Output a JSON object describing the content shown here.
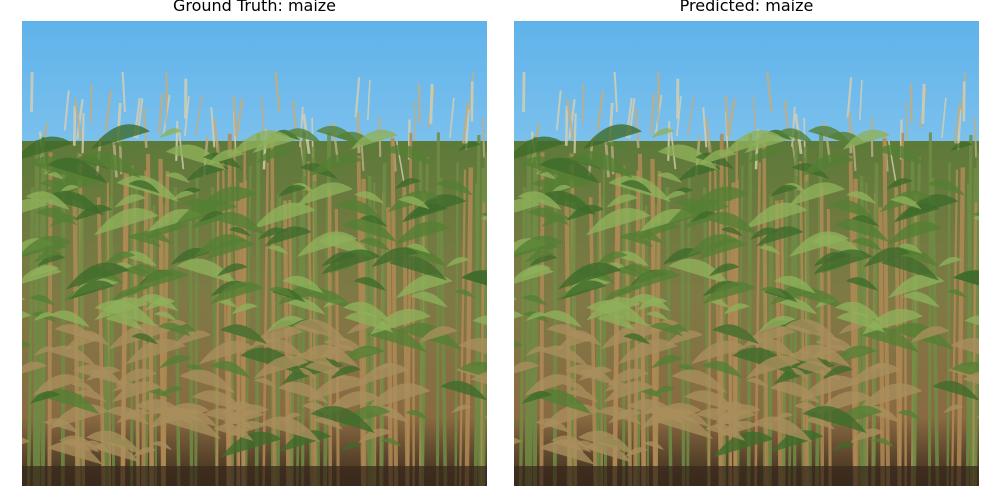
{
  "panels": [
    {
      "title": "Ground Truth: maize",
      "image": "maize-field-photo"
    },
    {
      "title": "Predicted: maize",
      "image": "maize-field-photo"
    }
  ],
  "colors": {
    "sky_top": "#5fb3ea",
    "sky_bottom": "#c9e6f6",
    "leaf_dark": "#3f6b2a",
    "leaf_light": "#8fb05a",
    "stalk_dry": "#b08a55",
    "soil": "#3a2a1c"
  }
}
